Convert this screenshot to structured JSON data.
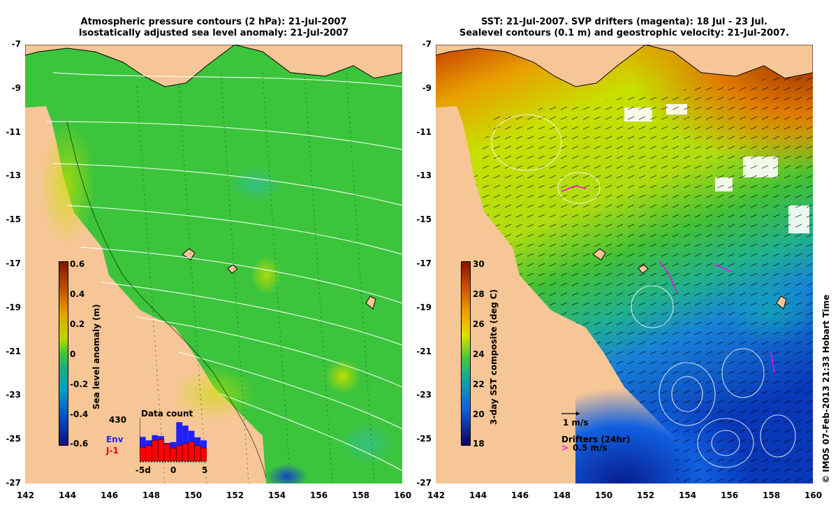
{
  "left_panel": {
    "title_line1": "Atmospheric pressure contours (2 hPa): 21-Jul-2007",
    "title_line2": "Isostatically adjusted sea level anomaly: 21-Jul-2007",
    "colorbar": {
      "label": "Sea level anomaly (m)",
      "ticks": [
        "0.6",
        "0.4",
        "0.2",
        "0",
        "-0.2",
        "-0.4",
        "-0.6"
      ],
      "colors": [
        "#7a1a00",
        "#c04a00",
        "#e8a000",
        "#b8d800",
        "#38c838",
        "#00a0b0",
        "#0050d0",
        "#101080"
      ]
    },
    "data_count": {
      "title": "Data count",
      "max_label": "430",
      "env_label": "Env",
      "j1_label": "J-1",
      "env_color": "#2020ff",
      "j1_color": "#ff0000",
      "x_ticks": [
        "-5d",
        "0",
        "5"
      ],
      "env_values": [
        0.56,
        0.48,
        0.6,
        0.58,
        0.42,
        0.44,
        0.9,
        0.82,
        0.7,
        0.55,
        0.48
      ],
      "j1_values": [
        0.32,
        0.36,
        0.48,
        0.5,
        0.4,
        0.3,
        0.36,
        0.4,
        0.45,
        0.36,
        0.3
      ]
    }
  },
  "right_panel": {
    "title_line1": "SST: 21-Jul-2007. SVP drifters (magenta): 18 Jul - 23 Jul.",
    "title_line2": "Sealevel contours (0.1 m) and geostrophic velocity: 21-Jul-2007.",
    "colorbar": {
      "label": "3-day SST composite (deg C)",
      "ticks": [
        "30",
        "28",
        "26",
        "24",
        "22",
        "20",
        "18"
      ],
      "colors": [
        "#8a1200",
        "#d05000",
        "#f0a000",
        "#e0e000",
        "#48c838",
        "#10a8a0",
        "#1060e0",
        "#100060"
      ]
    },
    "legend": {
      "velocity_label": "1 m/s",
      "drifters_label": "Drifters (24hr)",
      "drifters_speed": "0.5 m/s",
      "drifters_color": "#ff00ff"
    },
    "credit": "© IMOS 07-Feb-2013 21:33 Hobart Time"
  },
  "axes": {
    "y_ticks": [
      "-7",
      "-9",
      "-11",
      "-13",
      "-15",
      "-17",
      "-19",
      "-21",
      "-23",
      "-25",
      "-27"
    ],
    "x_ticks": [
      "142",
      "144",
      "146",
      "148",
      "150",
      "152",
      "154",
      "156",
      "158",
      "160"
    ]
  },
  "colors": {
    "land": "#f7c697",
    "sla_ocean": "#3cc43c",
    "sst_warm": "#d84c00",
    "sst_mid": "#c8e000",
    "sst_cool": "#20a040",
    "sst_cold": "#0b40c0"
  }
}
